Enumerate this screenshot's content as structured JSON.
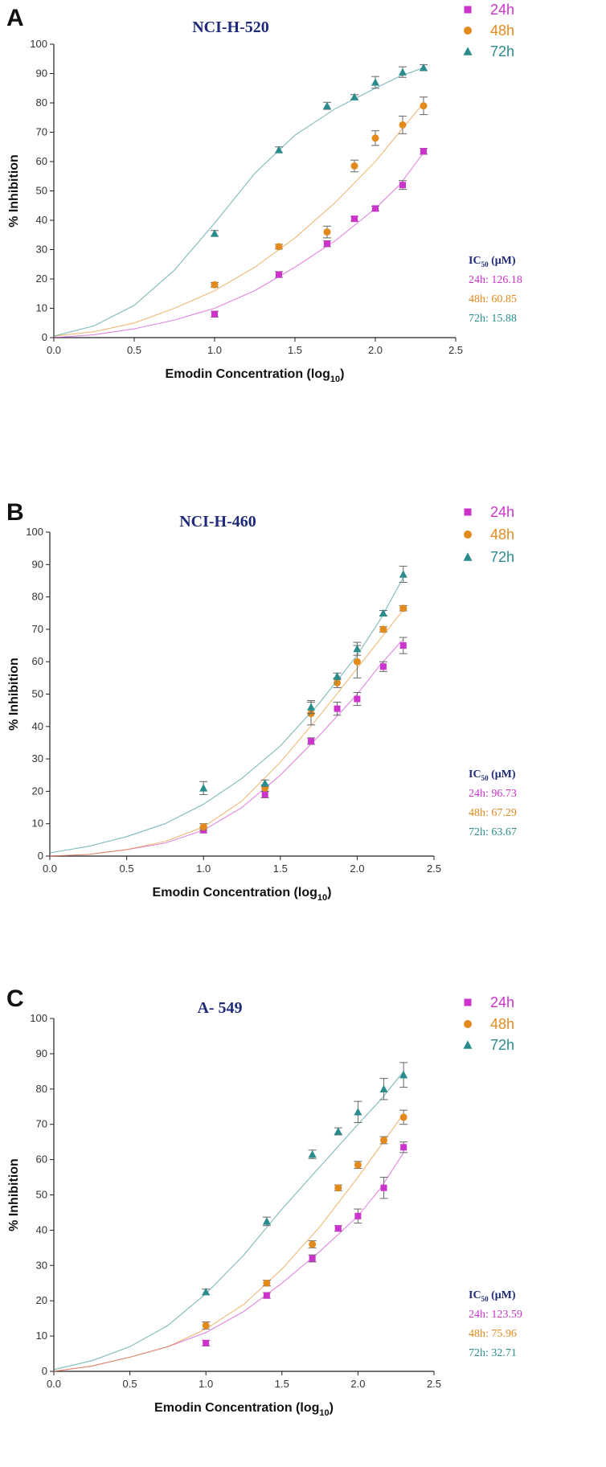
{
  "chart_data": [
    {
      "type": "scatter",
      "panel_label": "A",
      "title": "NCI-H-520",
      "xlabel": "Emodin Concentration (log",
      "xlabel_sub": "10",
      "xlabel_close": ")",
      "ylabel": "% Inhibition",
      "xlim": [
        0,
        2.5
      ],
      "ylim": [
        0,
        100
      ],
      "xticks": [
        "0.0",
        "0.5",
        "1.0",
        "1.5",
        "2.0",
        "2.5"
      ],
      "yticks": [
        "0",
        "10",
        "20",
        "30",
        "40",
        "50",
        "60",
        "70",
        "80",
        "90",
        "100"
      ],
      "legend": [
        "24h",
        "48h",
        "72h"
      ],
      "ic50_title": "IC",
      "ic50_sub": "50",
      "ic50_unit": " (μM)",
      "ic50_lines": [
        "24h: 126.18",
        "48h: 60.85",
        "72h: 15.88"
      ],
      "series": [
        {
          "name": "24h",
          "color": "#cc33cc",
          "marker": "square",
          "x": [
            1.0,
            1.4,
            1.7,
            1.87,
            2.0,
            2.17,
            2.3
          ],
          "y": [
            8,
            21.5,
            32,
            40.5,
            44,
            52,
            63.5
          ],
          "err": [
            1,
            1,
            1,
            0.8,
            0.8,
            1.5,
            1
          ],
          "fit_x": [
            0,
            0.25,
            0.5,
            0.75,
            1.0,
            1.25,
            1.5,
            1.75,
            2.0,
            2.15,
            2.3
          ],
          "fit_y": [
            0,
            1,
            3,
            6,
            10,
            16,
            24,
            33,
            44,
            52,
            63
          ]
        },
        {
          "name": "48h",
          "color": "#e38a1c",
          "marker": "circle",
          "x": [
            1.0,
            1.4,
            1.7,
            1.87,
            2.0,
            2.17,
            2.3
          ],
          "y": [
            18,
            31,
            36,
            58.5,
            68,
            72.5,
            79
          ],
          "err": [
            0.8,
            0.8,
            2,
            2,
            2.5,
            3,
            3
          ],
          "fit_x": [
            0,
            0.25,
            0.5,
            0.75,
            1.0,
            1.25,
            1.5,
            1.75,
            2.0,
            2.15,
            2.3
          ],
          "fit_y": [
            0.5,
            2,
            5,
            10,
            16,
            24,
            34,
            46,
            60,
            70,
            80
          ]
        },
        {
          "name": "72h",
          "color": "#2a8c8c",
          "marker": "triangle",
          "x": [
            1.0,
            1.4,
            1.7,
            1.87,
            2.0,
            2.17,
            2.3
          ],
          "y": [
            35.5,
            64,
            79,
            82,
            87,
            90.5,
            92
          ],
          "err": [
            1,
            1,
            1.2,
            0.8,
            2,
            1.8,
            1
          ],
          "fit_x": [
            0,
            0.25,
            0.5,
            0.75,
            1.0,
            1.25,
            1.5,
            1.75,
            2.0,
            2.15,
            2.3
          ],
          "fit_y": [
            0.5,
            4,
            11,
            23,
            39,
            56,
            69,
            78,
            85,
            89,
            92
          ]
        }
      ]
    },
    {
      "type": "scatter",
      "panel_label": "B",
      "title": "NCI-H-460",
      "xlabel": "Emodin Concentration (log",
      "xlabel_sub": "10",
      "xlabel_close": ")",
      "ylabel": "% Inhibition",
      "xlim": [
        0,
        2.5
      ],
      "ylim": [
        0,
        100
      ],
      "xticks": [
        "0.0",
        "0.5",
        "1.0",
        "1.5",
        "2.0",
        "2.5"
      ],
      "yticks": [
        "0",
        "10",
        "20",
        "30",
        "40",
        "50",
        "60",
        "70",
        "80",
        "90",
        "100"
      ],
      "legend": [
        "24h",
        "48h",
        "72h"
      ],
      "ic50_title": "IC",
      "ic50_sub": "50",
      "ic50_unit": " (μM)",
      "ic50_lines": [
        "24h: 96.73",
        "48h: 67.29",
        "72h: 63.67"
      ],
      "series": [
        {
          "name": "24h",
          "color": "#cc33cc",
          "marker": "square",
          "x": [
            1.0,
            1.4,
            1.7,
            1.87,
            2.0,
            2.17,
            2.3
          ],
          "y": [
            8,
            19,
            35.5,
            45.5,
            48.5,
            58.5,
            65
          ],
          "err": [
            0.8,
            1,
            1,
            2,
            2,
            1.5,
            2.5
          ],
          "fit_x": [
            0,
            0.25,
            0.5,
            0.75,
            1.0,
            1.25,
            1.5,
            1.75,
            2.0,
            2.15,
            2.3
          ],
          "fit_y": [
            0,
            0.5,
            2,
            4,
            8,
            15,
            25,
            37,
            50,
            59,
            67
          ]
        },
        {
          "name": "48h",
          "color": "#e38a1c",
          "marker": "circle",
          "x": [
            1.0,
            1.4,
            1.7,
            1.87,
            2.0,
            2.17,
            2.3
          ],
          "y": [
            9,
            21,
            44,
            53.5,
            60,
            70,
            76.5
          ],
          "err": [
            1,
            1,
            3.5,
            1.5,
            5,
            0.8,
            0.8
          ],
          "fit_x": [
            0,
            0.25,
            0.5,
            0.75,
            1.0,
            1.25,
            1.5,
            1.75,
            2.0,
            2.15,
            2.3
          ],
          "fit_y": [
            0,
            0.5,
            2,
            4.5,
            9,
            17,
            29,
            43,
            58,
            67,
            76
          ]
        },
        {
          "name": "72h",
          "color": "#2a8c8c",
          "marker": "triangle",
          "x": [
            1.0,
            1.4,
            1.7,
            1.87,
            2.0,
            2.17,
            2.3
          ],
          "y": [
            21,
            22.5,
            46,
            55.5,
            64,
            75,
            87
          ],
          "err": [
            2,
            1,
            2,
            1,
            2,
            0.8,
            2.5
          ],
          "fit_x": [
            0,
            0.25,
            0.5,
            0.75,
            1.0,
            1.25,
            1.5,
            1.75,
            2.0,
            2.15,
            2.3
          ],
          "fit_y": [
            1,
            3,
            6,
            10,
            16,
            24,
            34,
            47,
            62,
            73,
            86
          ]
        }
      ]
    },
    {
      "type": "scatter",
      "panel_label": "C",
      "title": "A- 549",
      "xlabel": "Emodin Concentration (log",
      "xlabel_sub": "10",
      "xlabel_close": ")",
      "ylabel": "% Inhibition",
      "xlim": [
        0,
        2.5
      ],
      "ylim": [
        0,
        100
      ],
      "xticks": [
        "0.0",
        "0.5",
        "1.0",
        "1.5",
        "2.0",
        "2.5"
      ],
      "yticks": [
        "0",
        "10",
        "20",
        "30",
        "40",
        "50",
        "60",
        "70",
        "80",
        "90",
        "100"
      ],
      "legend": [
        "24h",
        "48h",
        "72h"
      ],
      "ic50_title": "IC",
      "ic50_sub": "50",
      "ic50_unit": " (μM)",
      "ic50_lines": [
        "24h: 123.59",
        "48h: 75.96",
        "72h: 32.71"
      ],
      "series": [
        {
          "name": "24h",
          "color": "#cc33cc",
          "marker": "square",
          "x": [
            1.0,
            1.4,
            1.7,
            1.87,
            2.0,
            2.17,
            2.3
          ],
          "y": [
            8,
            21.5,
            32,
            40.5,
            44,
            52,
            63.5
          ],
          "err": [
            0.8,
            0.8,
            1,
            0.8,
            2,
            3,
            1.5
          ],
          "fit_x": [
            0,
            0.25,
            0.5,
            0.75,
            1.0,
            1.25,
            1.5,
            1.75,
            2.0,
            2.15,
            2.3
          ],
          "fit_y": [
            0,
            1.5,
            4,
            7,
            11,
            17,
            25,
            34,
            44,
            52,
            62
          ]
        },
        {
          "name": "48h",
          "color": "#e38a1c",
          "marker": "circle",
          "x": [
            1.0,
            1.4,
            1.7,
            1.87,
            2.0,
            2.17,
            2.3
          ],
          "y": [
            13,
            25,
            36,
            52,
            58.5,
            65.5,
            72
          ],
          "err": [
            1,
            0.8,
            1,
            0.8,
            1,
            1,
            2
          ],
          "fit_x": [
            0,
            0.25,
            0.5,
            0.75,
            1.0,
            1.25,
            1.5,
            1.75,
            2.0,
            2.15,
            2.3
          ],
          "fit_y": [
            0,
            1.5,
            4,
            7,
            12,
            19,
            29,
            41,
            55,
            64,
            73
          ]
        },
        {
          "name": "72h",
          "color": "#2a8c8c",
          "marker": "triangle",
          "x": [
            1.0,
            1.4,
            1.7,
            1.87,
            2.0,
            2.17,
            2.3
          ],
          "y": [
            22.5,
            42.5,
            61.5,
            68,
            73.5,
            80,
            84
          ],
          "err": [
            0.8,
            1.2,
            1.2,
            1,
            3,
            3,
            3.5
          ],
          "fit_x": [
            0,
            0.25,
            0.5,
            0.75,
            1.0,
            1.25,
            1.5,
            1.75,
            2.0,
            2.15,
            2.3
          ],
          "fit_y": [
            0.5,
            3,
            7,
            13,
            22,
            33,
            46,
            58,
            70,
            77,
            85
          ]
        }
      ]
    }
  ]
}
